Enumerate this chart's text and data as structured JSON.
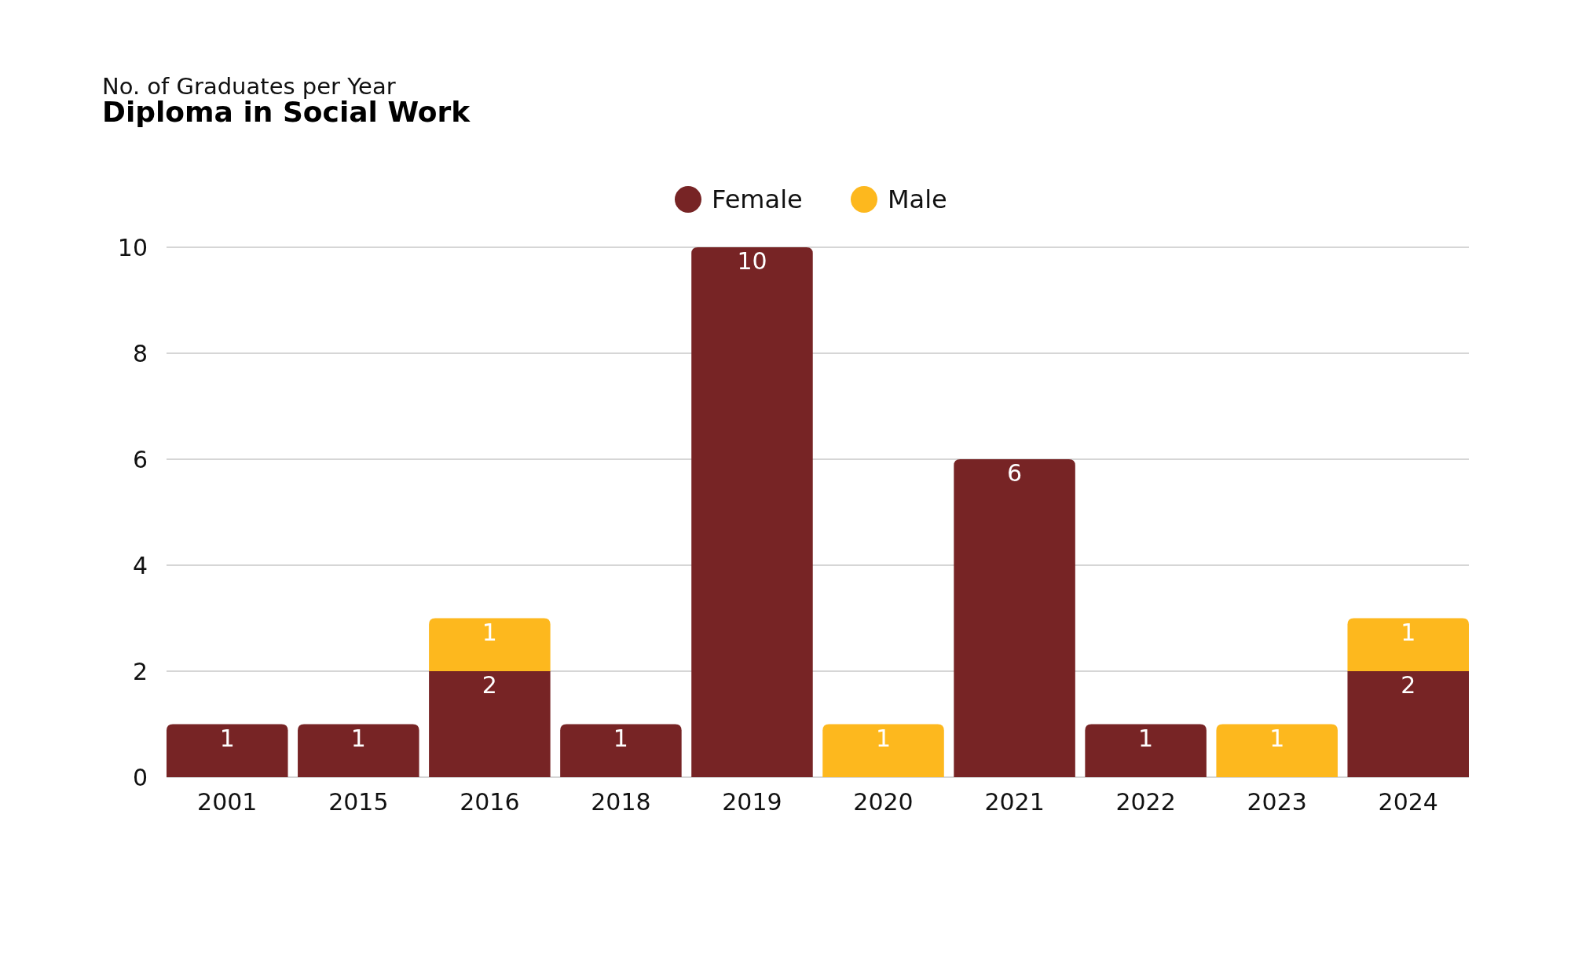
{
  "chart_data": {
    "type": "bar",
    "title": "Diploma in Social Work",
    "subtitle": "No. of Graduates per Year",
    "categories": [
      "2001",
      "2015",
      "2016",
      "2018",
      "2019",
      "2020",
      "2021",
      "2022",
      "2023",
      "2024"
    ],
    "series": [
      {
        "name": "Female",
        "color": "#772425",
        "values": [
          1,
          1,
          2,
          1,
          10,
          null,
          6,
          1,
          null,
          2
        ]
      },
      {
        "name": "Male",
        "color": "#fdb81e",
        "values": [
          null,
          null,
          1,
          null,
          null,
          1,
          null,
          null,
          1,
          1
        ]
      }
    ],
    "stacked": true,
    "ylim": [
      0,
      10
    ],
    "yticks": [
      0,
      2,
      4,
      6,
      8,
      10
    ],
    "grid": "y",
    "legend": "top",
    "data_labels": true
  }
}
